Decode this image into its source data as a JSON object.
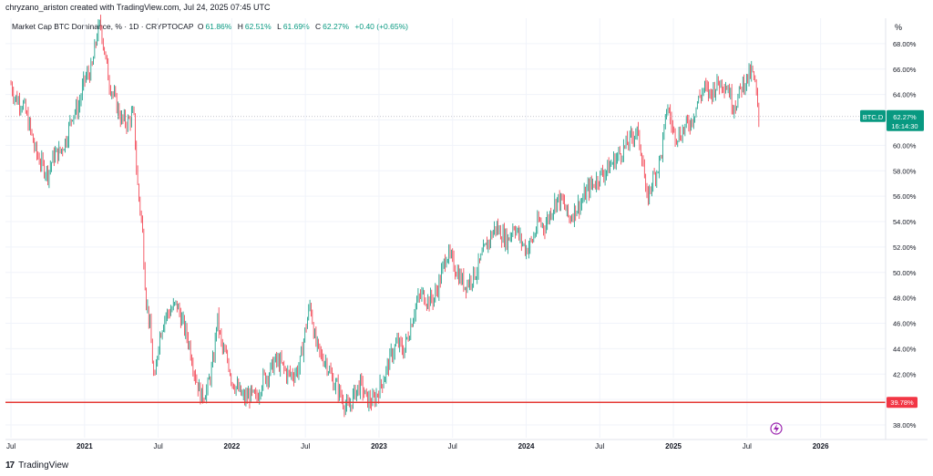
{
  "header": "chryzano_ariston created with TradingView.com, Jul 24, 2025 07:45 UTC",
  "legend": {
    "symbol": "Market Cap BTC Dominance, % · 1D · CRYPTOCAP",
    "open_label": "O",
    "open": "61.86%",
    "high_label": "H",
    "high": "62.51%",
    "low_label": "L",
    "low": "61.69%",
    "close_label": "C",
    "close": "62.27%",
    "change": "+0.40 (+0.65%)"
  },
  "footer": {
    "brand": "TradingView"
  },
  "colors": {
    "up": "#089981",
    "down": "#f23645",
    "hline": "#e53935",
    "label_bg": "#089981",
    "hline_label_bg": "#f23645",
    "grid": "#f0f3fa",
    "axis_text": "#131722"
  },
  "chart_data": {
    "type": "candlestick",
    "symbol": "BTC.D",
    "unit": "%",
    "ylim": [
      37,
      70
    ],
    "y_ticks": [
      "38.00%",
      "40.00%",
      "42.00%",
      "44.00%",
      "46.00%",
      "48.00%",
      "50.00%",
      "52.00%",
      "54.00%",
      "56.00%",
      "58.00%",
      "60.00%",
      "62.00%",
      "64.00%",
      "66.00%",
      "68.00%"
    ],
    "x_ticks": [
      "Jul",
      "2021",
      "Jul",
      "2022",
      "Jul",
      "2023",
      "Jul",
      "2024",
      "Jul",
      "2025",
      "Jul",
      "2026"
    ],
    "x_tick_months": [
      0,
      6,
      12,
      18,
      24,
      30,
      36,
      42,
      48,
      54,
      60,
      66
    ],
    "x_range_months": [
      -0.45,
      71.3
    ],
    "last_month": 61.0,
    "last_price": {
      "symbol": "BTC.D",
      "value": "62.27%",
      "countdown": "16:14:30",
      "price": 62.27
    },
    "horizontal_line": {
      "value": 39.78,
      "label": "39.78%"
    },
    "path": [
      [
        0,
        64.8
      ],
      [
        0.3,
        63.8
      ],
      [
        1,
        63.2
      ],
      [
        1.5,
        61.5
      ],
      [
        2,
        59.5
      ],
      [
        2.5,
        58.5
      ],
      [
        3,
        57.8
      ],
      [
        3.5,
        59.2
      ],
      [
        4,
        59.5
      ],
      [
        4.5,
        60.5
      ],
      [
        5,
        62.5
      ],
      [
        5.5,
        63.0
      ],
      [
        6,
        65.2
      ],
      [
        6.6,
        66.0
      ],
      [
        7,
        68.7
      ],
      [
        7.3,
        69.6
      ],
      [
        7.6,
        67.5
      ],
      [
        8,
        65.0
      ],
      [
        8.5,
        63.5
      ],
      [
        9,
        62.0
      ],
      [
        9.5,
        61.8
      ],
      [
        10,
        62.5
      ],
      [
        10.3,
        57.0
      ],
      [
        10.7,
        53.5
      ],
      [
        11,
        48.0
      ],
      [
        11.3,
        46.0
      ],
      [
        11.7,
        41.0
      ],
      [
        12,
        44.5
      ],
      [
        12.5,
        46.5
      ],
      [
        13,
        47.0
      ],
      [
        13.5,
        47.5
      ],
      [
        14,
        46.0
      ],
      [
        14.5,
        44.5
      ],
      [
        15,
        42.0
      ],
      [
        15.5,
        40.2
      ],
      [
        16,
        40.8
      ],
      [
        16.5,
        43.0
      ],
      [
        16.8,
        46.5
      ],
      [
        17.2,
        44.0
      ],
      [
        17.7,
        43.0
      ],
      [
        18,
        41.5
      ],
      [
        18.5,
        40.8
      ],
      [
        19,
        40.0
      ],
      [
        19.5,
        40.4
      ],
      [
        20,
        40.0
      ],
      [
        20.5,
        41.6
      ],
      [
        21,
        42.0
      ],
      [
        21.5,
        43.0
      ],
      [
        22,
        42.8
      ],
      [
        22.5,
        42.0
      ],
      [
        23,
        42.0
      ],
      [
        23.5,
        42.5
      ],
      [
        24,
        45.5
      ],
      [
        24.4,
        47.6
      ],
      [
        24.8,
        44.5
      ],
      [
        25.2,
        43.5
      ],
      [
        25.7,
        43.0
      ],
      [
        26.2,
        41.5
      ],
      [
        26.7,
        40.8
      ],
      [
        27,
        40.0
      ],
      [
        27.5,
        39.2
      ],
      [
        28,
        40.5
      ],
      [
        28.5,
        41.2
      ],
      [
        29,
        40.0
      ],
      [
        29.5,
        39.8
      ],
      [
        30,
        40.8
      ],
      [
        30.5,
        42.0
      ],
      [
        31,
        43.5
      ],
      [
        31.5,
        44.5
      ],
      [
        32,
        43.8
      ],
      [
        32.5,
        45.5
      ],
      [
        33,
        47.5
      ],
      [
        33.5,
        48.3
      ],
      [
        34,
        47.8
      ],
      [
        34.5,
        48.0
      ],
      [
        35,
        49.5
      ],
      [
        35.5,
        51.5
      ],
      [
        36,
        50.8
      ],
      [
        36.5,
        49.8
      ],
      [
        37,
        49.0
      ],
      [
        37.5,
        49.5
      ],
      [
        38,
        50.2
      ],
      [
        38.5,
        51.5
      ],
      [
        39,
        52.6
      ],
      [
        39.5,
        53.6
      ],
      [
        40,
        53.0
      ],
      [
        40.5,
        52.5
      ],
      [
        41,
        53.8
      ],
      [
        41.5,
        52.6
      ],
      [
        42,
        51.8
      ],
      [
        42.5,
        52.5
      ],
      [
        43,
        54.0
      ],
      [
        43.5,
        53.6
      ],
      [
        44,
        54.8
      ],
      [
        44.5,
        55.8
      ],
      [
        45,
        55.5
      ],
      [
        45.5,
        54.2
      ],
      [
        46,
        55.0
      ],
      [
        46.5,
        55.5
      ],
      [
        47,
        56.5
      ],
      [
        47.5,
        57.0
      ],
      [
        48,
        57.6
      ],
      [
        48.5,
        58.0
      ],
      [
        49,
        58.6
      ],
      [
        49.5,
        59.2
      ],
      [
        50,
        59.8
      ],
      [
        50.5,
        60.5
      ],
      [
        51,
        61.2
      ],
      [
        51.5,
        59.0
      ],
      [
        51.8,
        55.5
      ],
      [
        52.2,
        57.0
      ],
      [
        52.7,
        58.2
      ],
      [
        53,
        59.2
      ],
      [
        53.3,
        61.5
      ],
      [
        53.5,
        63.2
      ],
      [
        54,
        61.0
      ],
      [
        54.5,
        60.8
      ],
      [
        55,
        61.5
      ],
      [
        55.5,
        62.0
      ],
      [
        56,
        63.5
      ],
      [
        56.5,
        64.5
      ],
      [
        57,
        64.0
      ],
      [
        57.5,
        64.8
      ],
      [
        58,
        65.0
      ],
      [
        58.5,
        64.5
      ],
      [
        58.8,
        63.2
      ],
      [
        59.2,
        63.5
      ],
      [
        59.6,
        64.8
      ],
      [
        60,
        65.2
      ],
      [
        60.4,
        65.8
      ],
      [
        60.7,
        64.5
      ],
      [
        61.0,
        61.5
      ],
      [
        61.0,
        62.27
      ]
    ]
  }
}
